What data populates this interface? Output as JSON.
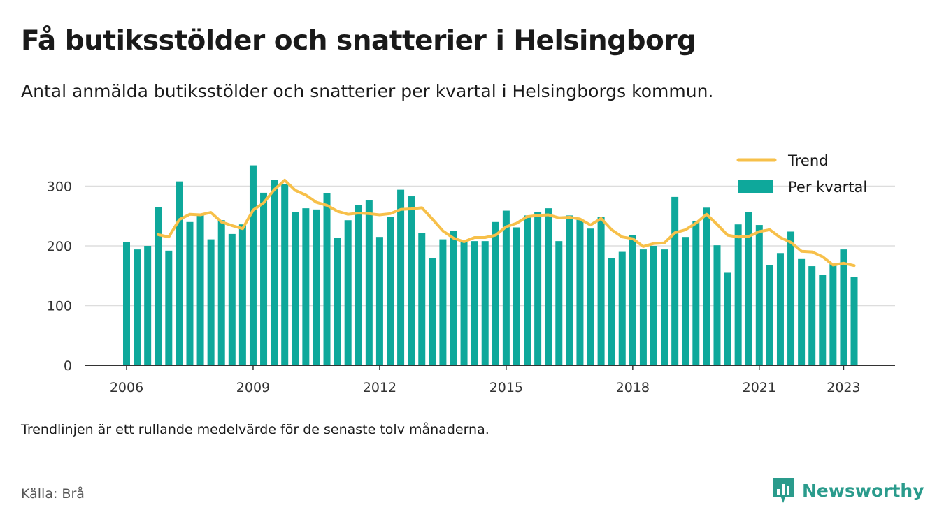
{
  "header": {
    "title": "Få butiksstölder och snatterier i Helsingborg",
    "subtitle": "Antal anmälda butiksstölder och snatterier per kvartal i Helsingborgs kommun."
  },
  "footer": {
    "note": "Trendlinjen är ett rullande medelvärde för de senaste tolv månaderna.",
    "source": "Källa: Brå",
    "brand": "Newsworthy"
  },
  "colors": {
    "bars": "#0ea89b",
    "trend": "#f7c04a",
    "brand": "#2a9b8c"
  },
  "chart_data": {
    "type": "bar",
    "x_start": 2006,
    "x_ticks": [
      2006,
      2009,
      2012,
      2015,
      2018,
      2021,
      2023
    ],
    "x_tick_labels": [
      "2006",
      "2009",
      "2012",
      "2015",
      "2018",
      "2021",
      "2023"
    ],
    "y_ticks": [
      0,
      100,
      200,
      300
    ],
    "y_tick_labels": [
      "0",
      "100",
      "200",
      "300"
    ],
    "ylim": [
      0,
      345
    ],
    "grid": true,
    "legend_position": "top-right",
    "series": [
      {
        "name": "Per kvartal",
        "type": "bar",
        "values": [
          206,
          194,
          200,
          265,
          192,
          308,
          240,
          252,
          211,
          243,
          220,
          236,
          335,
          289,
          310,
          303,
          257,
          263,
          261,
          288,
          213,
          243,
          268,
          276,
          215,
          249,
          294,
          283,
          222,
          179,
          211,
          225,
          210,
          208,
          208,
          240,
          259,
          231,
          251,
          257,
          263,
          208,
          251,
          244,
          229,
          249,
          180,
          190,
          218,
          194,
          200,
          194,
          282,
          215,
          241,
          264,
          201,
          155,
          236,
          257,
          235,
          168,
          188,
          224,
          178,
          166,
          152,
          170,
          194,
          148
        ]
      },
      {
        "name": "Trend",
        "type": "line",
        "values": [
          null,
          null,
          null,
          219,
          215,
          244,
          253,
          252,
          256,
          240,
          234,
          229,
          260,
          272,
          294,
          310,
          293,
          285,
          273,
          268,
          258,
          253,
          255,
          254,
          252,
          254,
          261,
          262,
          264,
          245,
          225,
          213,
          207,
          214,
          214,
          218,
          232,
          238,
          249,
          251,
          252,
          247,
          248,
          245,
          235,
          246,
          227,
          215,
          212,
          199,
          204,
          205,
          222,
          227,
          238,
          253,
          236,
          218,
          215,
          216,
          224,
          227,
          214,
          206,
          191,
          190,
          182,
          168,
          171,
          167
        ]
      }
    ]
  }
}
